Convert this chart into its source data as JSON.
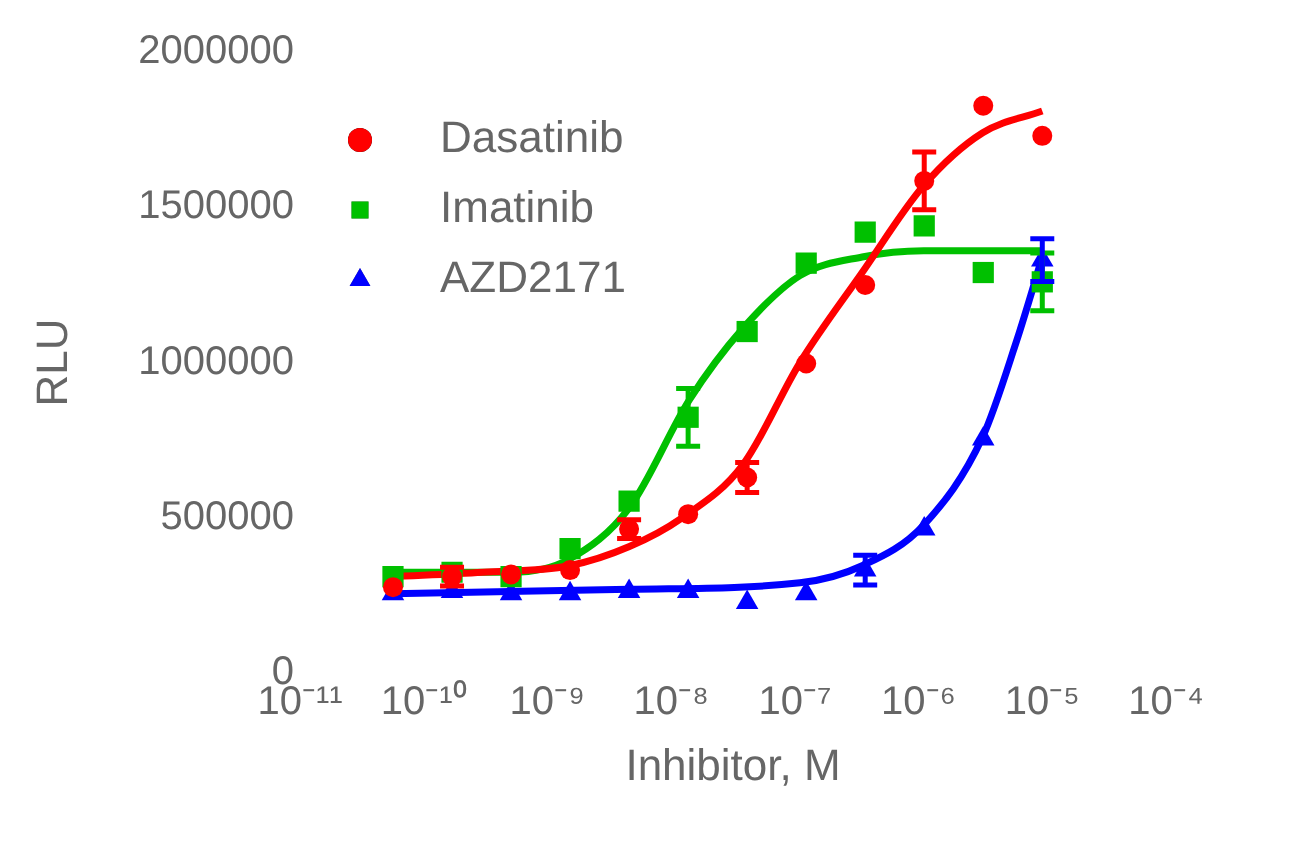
{
  "chart_data": {
    "type": "scatter",
    "xlabel": "Inhibitor, M",
    "ylabel": "RLU",
    "log": "x",
    "xlim": [
      1e-11,
      0.0001
    ],
    "xticks": [
      {
        "value": 1e-11,
        "label": "10⁻¹¹"
      },
      {
        "value": 1e-10,
        "label": "10⁻¹⁰"
      },
      {
        "value": 1e-09,
        "label": "10⁻⁹"
      },
      {
        "value": 1e-08,
        "label": "10⁻⁸"
      },
      {
        "value": 1e-07,
        "label": "10⁻⁷"
      },
      {
        "value": 1e-06,
        "label": "10⁻⁶"
      },
      {
        "value": 1e-05,
        "label": "10⁻⁵"
      },
      {
        "value": 0.0001,
        "label": "10⁻⁴"
      }
    ],
    "ylim": [
      0,
      2000000
    ],
    "yticks": [
      0,
      500000,
      1000000,
      1500000,
      2000000
    ],
    "grid": false,
    "legend": "top left",
    "series": [
      {
        "name": "Dasatinib",
        "color": "#ff0000",
        "marker": "circle",
        "x": [
          5.645e-11,
          1.694e-10,
          5.081e-10,
          1.524e-09,
          4.572e-09,
          1.372e-08,
          4.115e-08,
          1.235e-07,
          3.704e-07,
          1.111e-06,
          3.333e-06,
          1e-05
        ],
        "values": [
          277000,
          311000,
          318000,
          332000,
          464000,
          512000,
          630000,
          997000,
          1250000,
          1585000,
          1827000,
          1730000
        ],
        "errors": [
          null,
          30000,
          null,
          null,
          30000,
          null,
          48000,
          null,
          null,
          93000,
          null,
          null
        ]
      },
      {
        "name": "Imatinib",
        "color": "#00c000",
        "marker": "square",
        "x": [
          5.645e-11,
          1.694e-10,
          5.081e-10,
          1.524e-09,
          4.572e-09,
          1.372e-08,
          4.115e-08,
          1.235e-07,
          3.704e-07,
          1.111e-06,
          3.333e-06,
          1e-05
        ],
        "values": [
          311000,
          325000,
          311000,
          401000,
          554000,
          824000,
          1100000,
          1320000,
          1420000,
          1440000,
          1290000,
          1260000
        ],
        "errors": [
          null,
          null,
          null,
          null,
          null,
          93000,
          null,
          null,
          null,
          null,
          null,
          93000
        ]
      },
      {
        "name": "AZD2171",
        "color": "#0000ff",
        "marker": "triangle",
        "x": [
          5.645e-11,
          1.694e-10,
          5.081e-10,
          1.524e-09,
          4.572e-09,
          1.372e-08,
          4.115e-08,
          1.235e-07,
          3.704e-07,
          1.111e-06,
          3.333e-06,
          1e-05
        ],
        "values": [
          256000,
          263000,
          256000,
          256000,
          263000,
          263000,
          228000,
          256000,
          332000,
          464000,
          754000,
          1330000
        ],
        "errors": [
          null,
          null,
          null,
          null,
          null,
          null,
          null,
          null,
          48000,
          null,
          null,
          69000
        ]
      },
      {
        "type": "line",
        "color": "#ff0000",
        "x": [
          5.6e-11,
          3e-10,
          1.5e-09,
          4.6e-09,
          1.2e-08,
          3.8e-08,
          1.1e-07,
          3.5e-07,
          1.1e-06,
          3.3e-06,
          1e-05
        ],
        "values": [
          311000,
          325000,
          346000,
          408000,
          498000,
          671000,
          1000000,
          1290000,
          1570000,
          1740000,
          1810000
        ]
      },
      {
        "type": "line",
        "color": "#00c000",
        "x": [
          5.6e-11,
          5.2e-10,
          1.5e-09,
          4.6e-09,
          1.4e-08,
          3.8e-08,
          1.1e-07,
          3.5e-07,
          1.1e-06,
          1e-05
        ],
        "values": [
          325000,
          325000,
          367000,
          533000,
          879000,
          1110000,
          1280000,
          1340000,
          1360000,
          1360000
        ]
      },
      {
        "type": "line",
        "color": "#0000ff",
        "x": [
          5.6e-11,
          4.6e-09,
          1.1e-07,
          3.5e-07,
          1.1e-06,
          3.3e-06,
          6.2e-06,
          1e-05
        ],
        "values": [
          256000,
          270000,
          291000,
          346000,
          477000,
          761000,
          1070000,
          1340000
        ]
      }
    ]
  }
}
